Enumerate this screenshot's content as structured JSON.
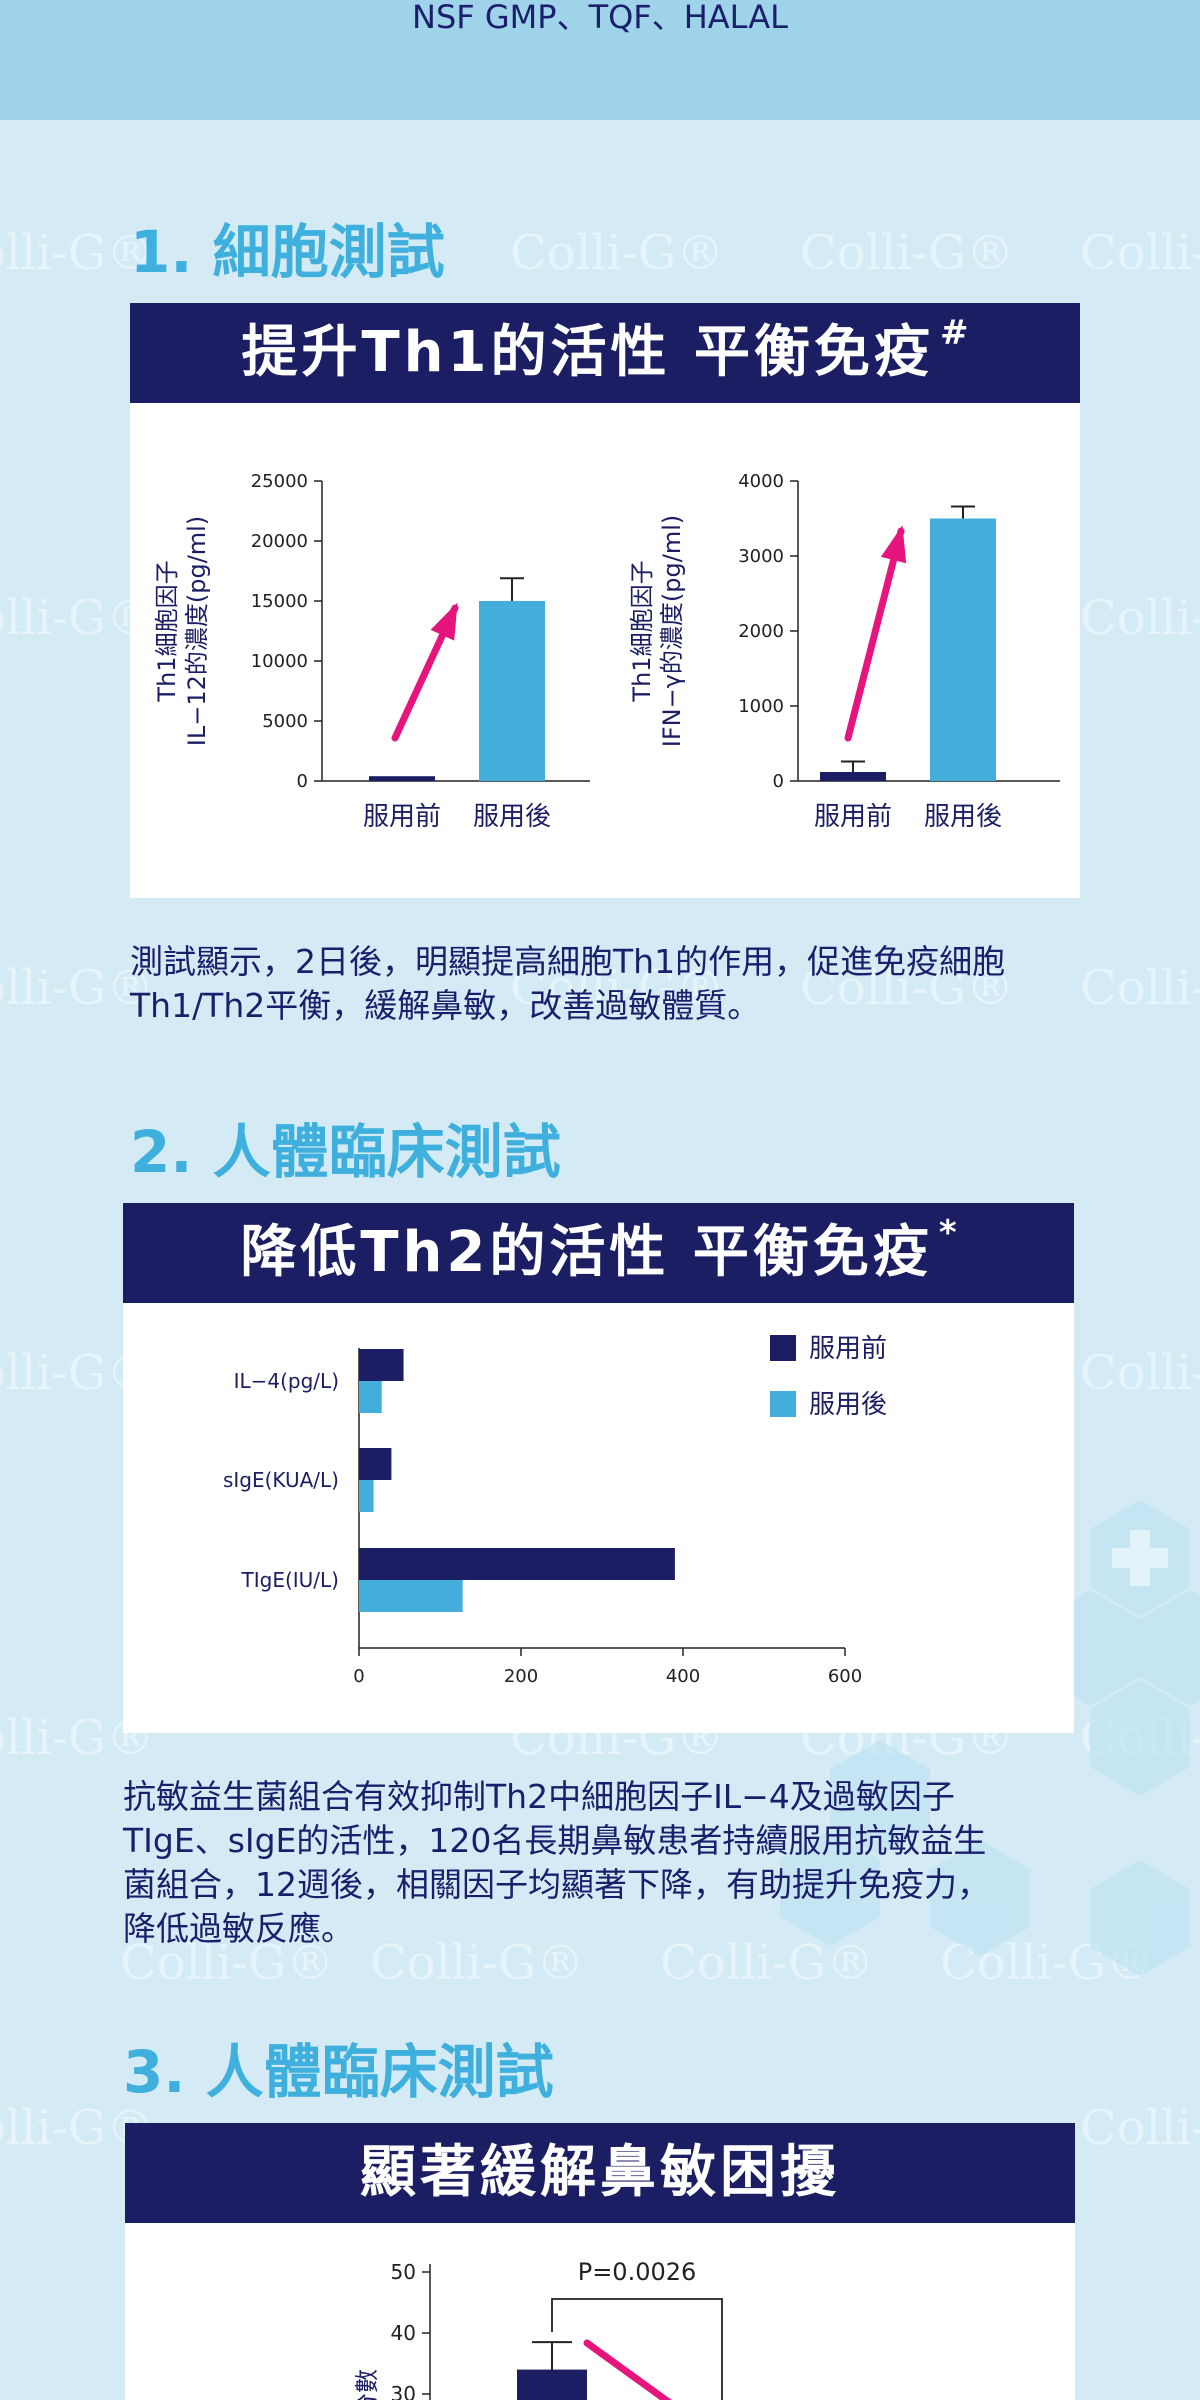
{
  "header": {
    "certifications": "NSF GMP、TQF、HALAL"
  },
  "watermark": "Colli-G®",
  "colors": {
    "navy": "#1b1e63",
    "cyan": "#44aedb",
    "pink": "#e6157d",
    "title": "#3fb0dd"
  },
  "section1": {
    "title": "1. 細胞測試",
    "banner": "提升Th1的活性 平衡免疫",
    "banner_mark": "#",
    "paragraph_lines": [
      "測試顯示，2日後，明顯提高細胞Th1的作用，促進免疫細胞",
      "Th1/Th2平衡，緩解鼻敏，改善過敏體質。"
    ]
  },
  "section2": {
    "title": "2. 人體臨床測試",
    "banner": "降低Th2的活性 平衡免疫",
    "banner_mark": "*",
    "paragraph_lines": [
      "抗敏益生菌組合有效抑制Th2中細胞因子IL−4及過敏因子",
      "TIgE、sIgE的活性，120名長期鼻敏患者持續服用抗敏益生",
      "菌組合，12週後，相關因子均顯著下降，有助提升免疫力，",
      "降低過敏反應。"
    ]
  },
  "section3": {
    "title": "3. 人體臨床測試",
    "banner": "顯著緩解鼻敏困擾"
  },
  "chart_data": [
    {
      "type": "bar",
      "ylabel_lines": [
        "Th1細胞因子",
        "IL−12的濃度(pg/ml)"
      ],
      "categories": [
        "服用前",
        "服用後"
      ],
      "values": [
        400,
        15000
      ],
      "error": [
        0,
        1900
      ],
      "ylim": [
        0,
        25000
      ],
      "yticks": [
        0,
        5000,
        10000,
        15000,
        20000,
        25000
      ]
    },
    {
      "type": "bar",
      "ylabel_lines": [
        "Th1細胞因子",
        "IFN−γ的濃度(pg/ml)"
      ],
      "categories": [
        "服用前",
        "服用後"
      ],
      "values": [
        120,
        3500
      ],
      "error": [
        140,
        160
      ],
      "ylim": [
        0,
        4000
      ],
      "yticks": [
        0,
        1000,
        2000,
        3000,
        4000
      ]
    },
    {
      "type": "bar",
      "orientation": "horizontal",
      "categories": [
        "IL−4(pg/L)",
        "sIgE(KUA/L)",
        "TIgE(IU/L)"
      ],
      "series": [
        {
          "name": "服用前",
          "values": [
            55,
            40,
            390
          ]
        },
        {
          "name": "服用後",
          "values": [
            28,
            18,
            128
          ]
        }
      ],
      "xlim": [
        0,
        600
      ],
      "xticks": [
        0,
        200,
        400,
        600
      ],
      "legend": "top-right"
    },
    {
      "type": "bar",
      "ylabel": "分數",
      "annotation": "P=0.0026",
      "values": [
        34
      ],
      "error": [
        4.5
      ],
      "ylim": [
        0,
        50
      ],
      "yticks": [
        30,
        40,
        50
      ]
    }
  ]
}
